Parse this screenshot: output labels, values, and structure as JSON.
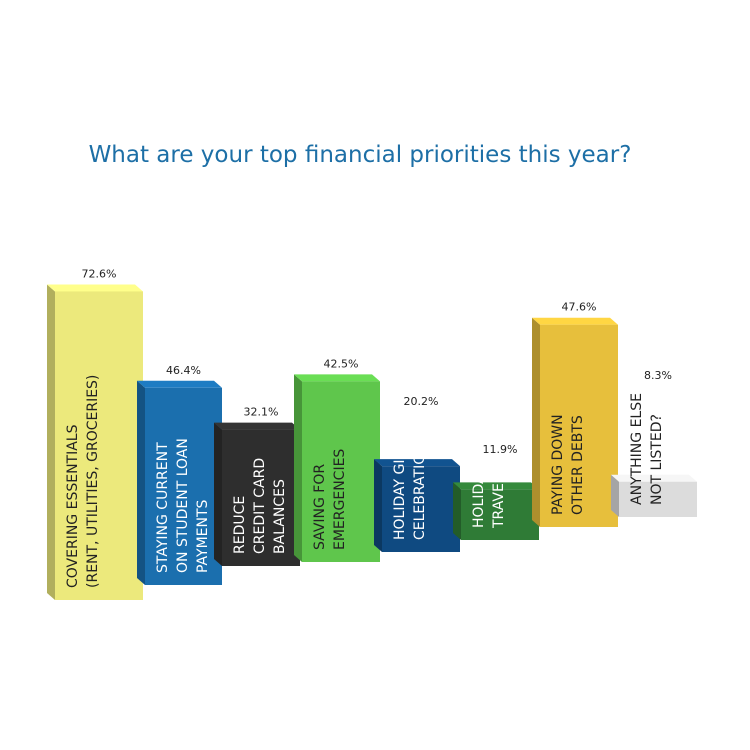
{
  "chart_data": {
    "type": "bar3d",
    "title": "What are your top financial priorities this year?",
    "categories": [
      [
        "COVERING ESSENTIALS",
        "(RENT, UTILITIES, GROCERIES)"
      ],
      [
        "STAYING CURRENT",
        "ON STUDENT LOAN",
        "PAYMENTS"
      ],
      [
        "REDUCE",
        "CREDIT CARD",
        "BALANCES"
      ],
      [
        "SAVING FOR",
        "EMERGENCIES"
      ],
      [
        "HOLIDAY GIFTS &",
        "CELEBRATIONS"
      ],
      [
        "HOLIDAY",
        "TRAVEL"
      ],
      [
        "PAYING DOWN",
        "OTHER DEBTS"
      ],
      [
        "ANYTHING ELSE",
        "NOT LISTED?"
      ]
    ],
    "values": [
      72.6,
      46.4,
      32.1,
      42.5,
      20.2,
      11.9,
      47.6,
      8.3
    ],
    "value_labels": [
      "72.6%",
      "46.4%",
      "32.1%",
      "42.5%",
      "20.2%",
      "11.9%",
      "47.6%",
      "8.3%"
    ],
    "colors": [
      "#ece97c",
      "#1b6fae",
      "#2e2e2e",
      "#5fc64c",
      "#0f4a81",
      "#2f7b36",
      "#e7bf3c",
      "#dcdcdc"
    ]
  }
}
